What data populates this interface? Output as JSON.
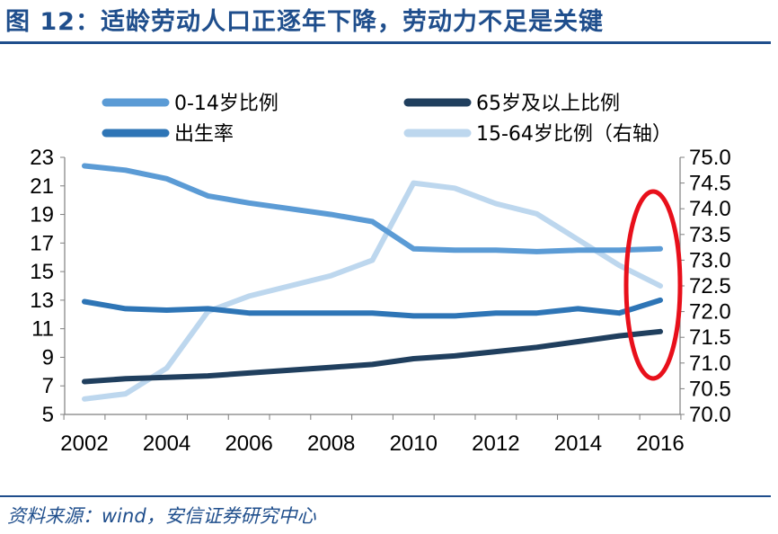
{
  "title": "图 12：适龄劳动人口正逐年下降，劳动力不足是关键",
  "source": "资料来源：wind，安信证券研究中心",
  "chart_data": {
    "type": "line",
    "x": [
      2002,
      2003,
      2004,
      2005,
      2006,
      2007,
      2008,
      2009,
      2010,
      2011,
      2012,
      2013,
      2014,
      2015,
      2016
    ],
    "x_ticks": [
      "2002",
      "2004",
      "2006",
      "2008",
      "2010",
      "2012",
      "2014",
      "2016"
    ],
    "y_left": {
      "range": [
        5,
        23
      ],
      "ticks": [
        "23",
        "21",
        "19",
        "17",
        "15",
        "13",
        "11",
        "9",
        "7",
        "5"
      ]
    },
    "y_right": {
      "range": [
        70.0,
        75.0
      ],
      "ticks": [
        "75.0",
        "74.5",
        "74.0",
        "73.5",
        "73.0",
        "72.5",
        "72.0",
        "71.5",
        "71.0",
        "70.5",
        "70.0"
      ]
    },
    "series": [
      {
        "name": "0-14岁比例",
        "axis": "left",
        "color": "#5b9bd5",
        "values": [
          22.4,
          22.1,
          21.5,
          20.3,
          19.8,
          19.4,
          19.0,
          18.5,
          16.6,
          16.5,
          16.5,
          16.4,
          16.5,
          16.5,
          16.6
        ]
      },
      {
        "name": "出生率",
        "axis": "left",
        "color": "#2e75b6",
        "values": [
          12.9,
          12.4,
          12.3,
          12.4,
          12.1,
          12.1,
          12.1,
          12.1,
          11.9,
          11.9,
          12.1,
          12.1,
          12.4,
          12.1,
          13.0
        ]
      },
      {
        "name": "65岁及以上比例",
        "axis": "left",
        "color": "#203f5e",
        "values": [
          7.3,
          7.5,
          7.6,
          7.7,
          7.9,
          8.1,
          8.3,
          8.5,
          8.9,
          9.1,
          9.4,
          9.7,
          10.1,
          10.5,
          10.8
        ]
      },
      {
        "name": "15-64岁比例（右轴）",
        "axis": "right",
        "color": "#bdd7ee",
        "values": [
          70.3,
          70.4,
          70.9,
          72.0,
          72.3,
          72.5,
          72.7,
          73.0,
          74.5,
          74.4,
          74.1,
          73.9,
          73.4,
          72.9,
          72.5
        ]
      }
    ],
    "legend_position": "top",
    "annotation": "red ellipse highlighting 2016 values"
  },
  "colors": {
    "title": "#1f4e8c",
    "highlight": "#e8101b"
  }
}
